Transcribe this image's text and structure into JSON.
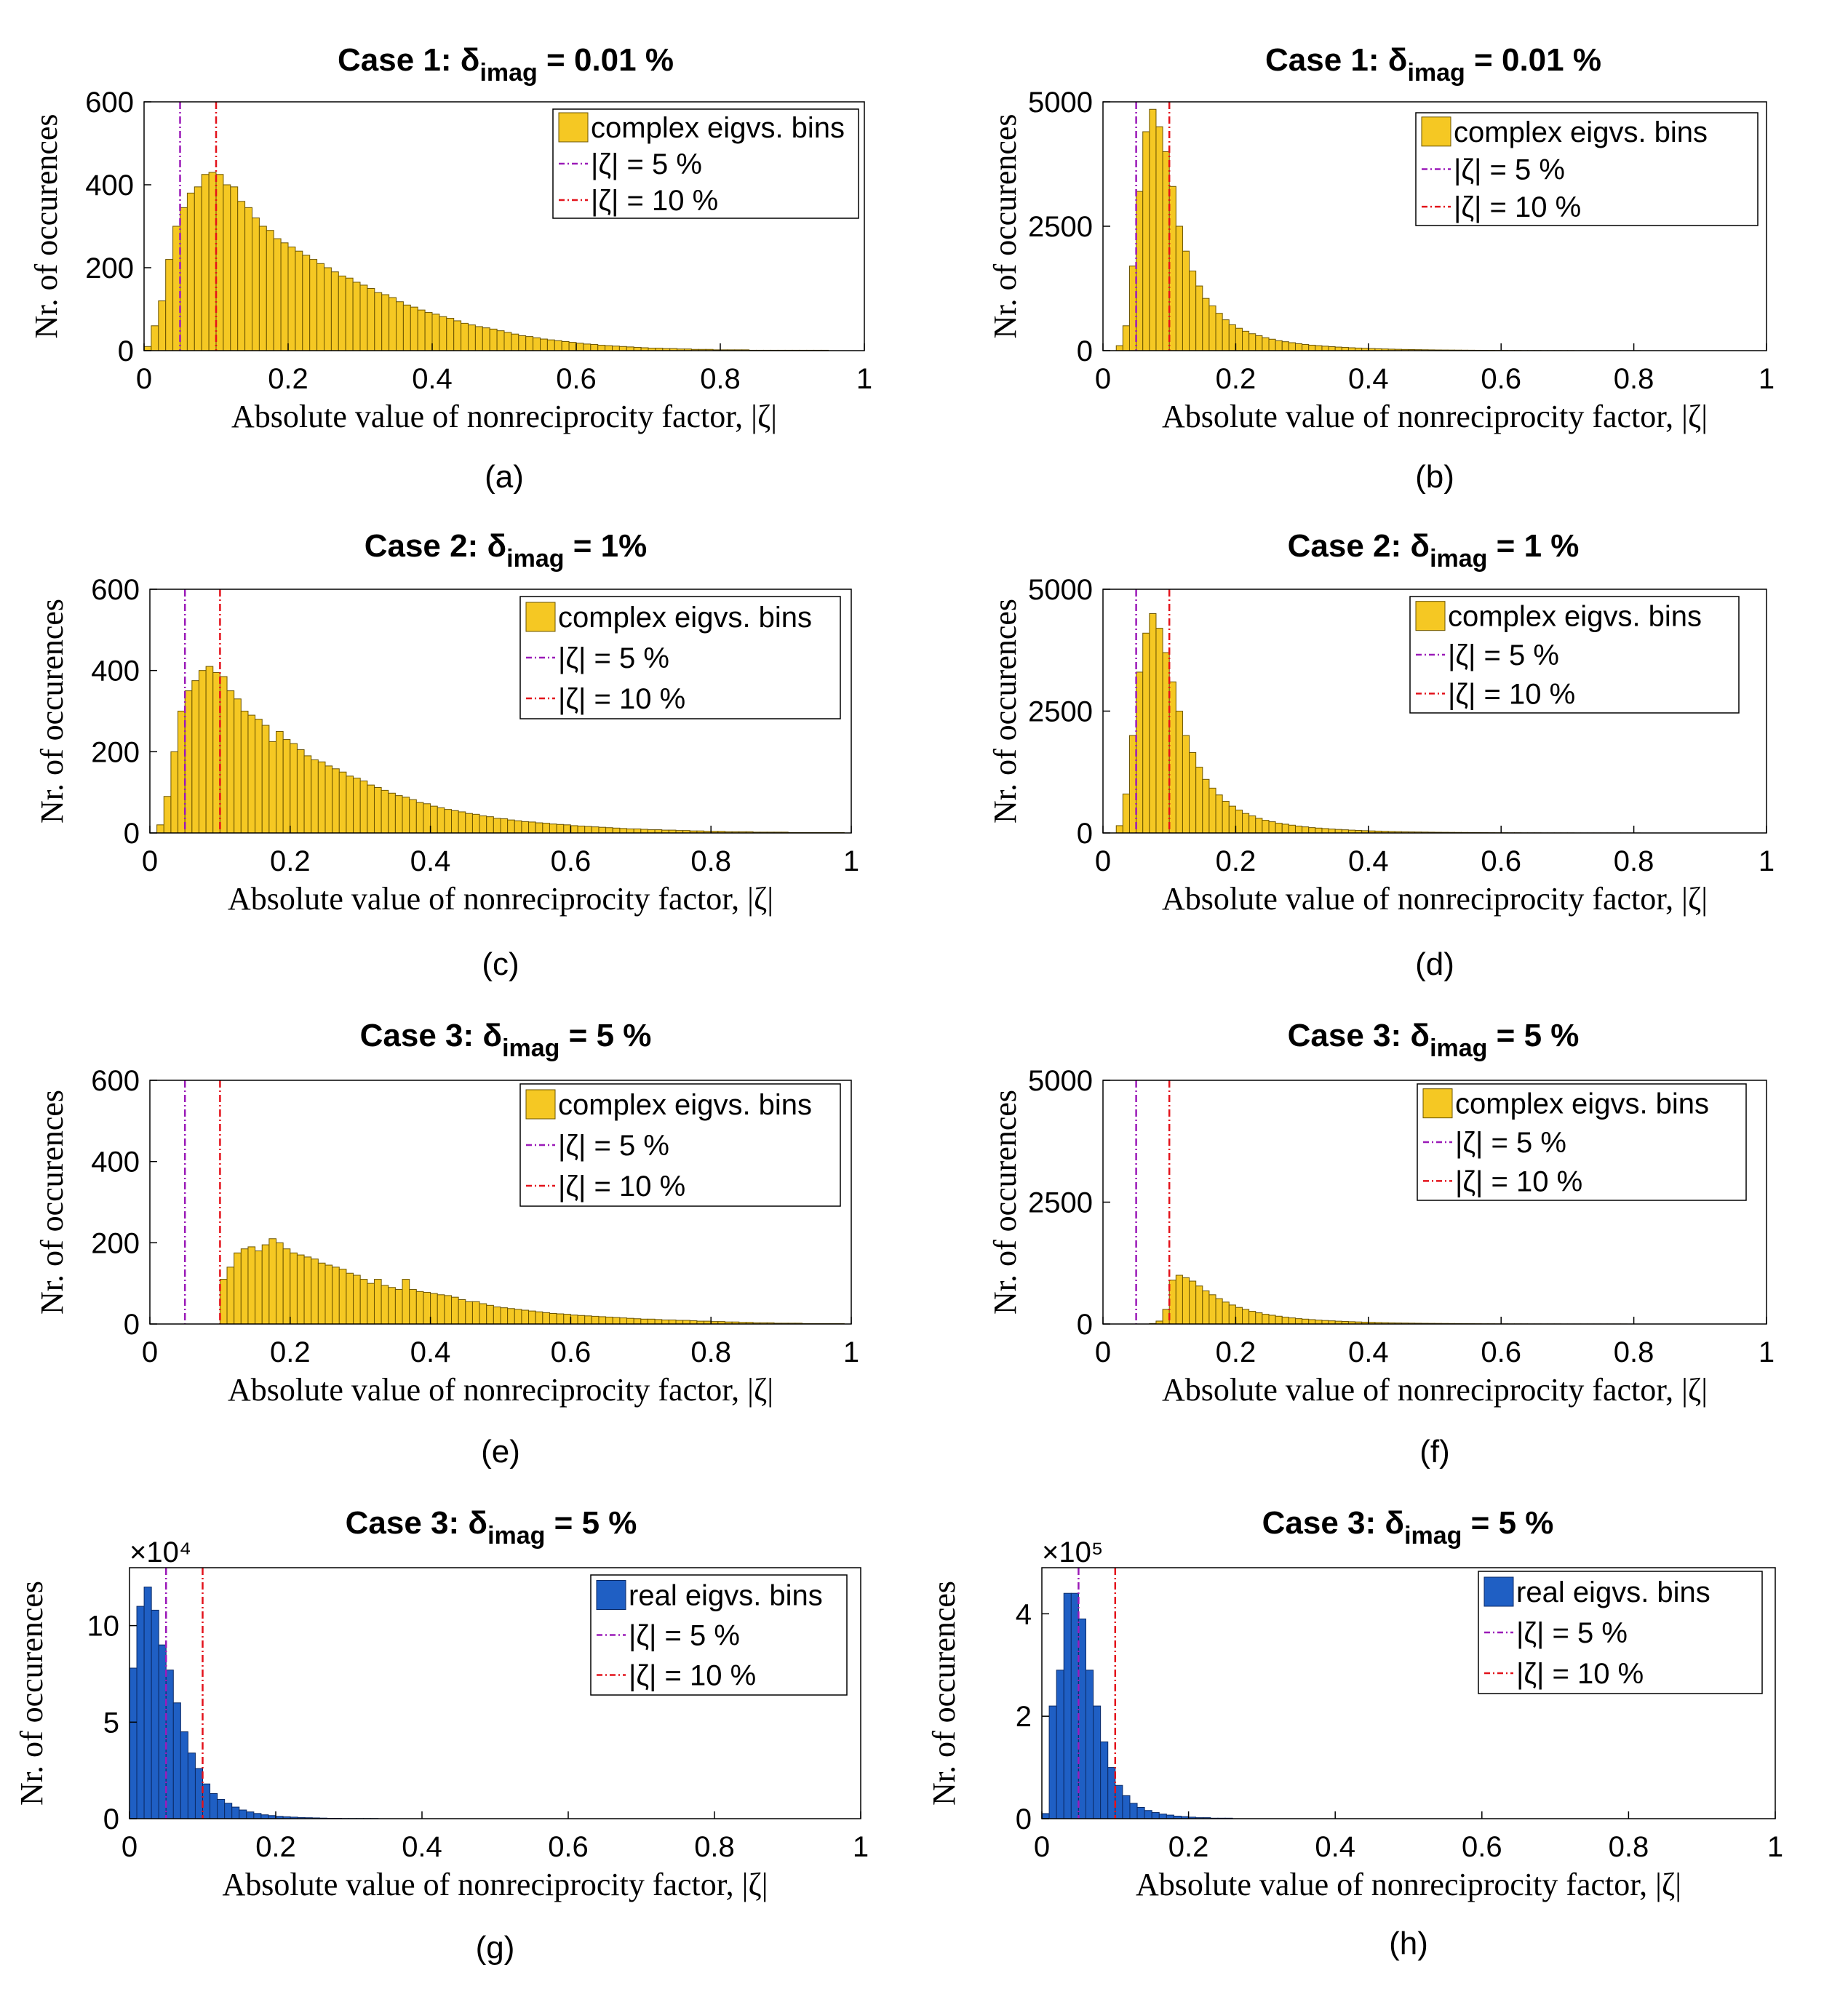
{
  "common": {
    "xlabel": "Absolute value of nonreciprocity factor, |ζ|",
    "ylabel": "Nr. of occurences",
    "x_ticks": [
      "0",
      "0.2",
      "0.4",
      "0.6",
      "0.8",
      "1"
    ],
    "legend_line5": "|ζ| = 5 %",
    "legend_line10": "|ζ| = 10 %",
    "line5_x": 0.05,
    "line10_x": 0.1,
    "line5_color": "#9b1ab8",
    "line10_color": "#e3121b",
    "complex_color": "#f5c823",
    "real_color": "#1f5fc4"
  },
  "panels": [
    {
      "id": "a",
      "label": "(a)",
      "title_main": "Case 1: δ",
      "title_sub": "imag",
      "title_end": " = 0.01 %",
      "legend_bins": "complex eigvs. bins",
      "y_ticks": [
        "0",
        "200",
        "400",
        "600"
      ],
      "multiplier": ""
    },
    {
      "id": "b",
      "label": "(b)",
      "title_main": "Case 1: δ",
      "title_sub": "imag",
      "title_end": " = 0.01 %",
      "legend_bins": "complex eigvs. bins",
      "y_ticks": [
        "0",
        "2500",
        "5000"
      ],
      "multiplier": ""
    },
    {
      "id": "c",
      "label": "(c)",
      "title_main": "Case 2: δ",
      "title_sub": "imag",
      "title_end": " = 1%",
      "legend_bins": "complex eigvs. bins",
      "y_ticks": [
        "0",
        "200",
        "400",
        "600"
      ],
      "multiplier": ""
    },
    {
      "id": "d",
      "label": "(d)",
      "title_main": "Case 2: δ",
      "title_sub": "imag",
      "title_end": " = 1 %",
      "legend_bins": "complex eigvs. bins",
      "y_ticks": [
        "0",
        "2500",
        "5000"
      ],
      "multiplier": ""
    },
    {
      "id": "e",
      "label": "(e)",
      "title_main": "Case 3: δ",
      "title_sub": "imag",
      "title_end": " = 5 %",
      "legend_bins": "complex eigvs. bins",
      "y_ticks": [
        "0",
        "200",
        "400",
        "600"
      ],
      "multiplier": ""
    },
    {
      "id": "f",
      "label": "(f)",
      "title_main": "Case 3: δ",
      "title_sub": "imag",
      "title_end": " = 5 %",
      "legend_bins": "complex eigvs. bins",
      "y_ticks": [
        "0",
        "2500",
        "5000"
      ],
      "multiplier": ""
    },
    {
      "id": "g",
      "label": "(g)",
      "title_main": "Case 3: δ",
      "title_sub": "imag",
      "title_end": " = 5 %",
      "legend_bins": "real eigvs. bins",
      "y_ticks": [
        "0",
        "5",
        "10"
      ],
      "multiplier": "×10⁴"
    },
    {
      "id": "h",
      "label": "(h)",
      "title_main": "Case 3: δ",
      "title_sub": "imag",
      "title_end": " = 5 %",
      "legend_bins": "real eigvs. bins",
      "y_ticks": [
        "0",
        "2",
        "4"
      ],
      "multiplier": "×10⁵"
    }
  ],
  "chart_data": [
    {
      "type": "bar",
      "panel": "a",
      "title": "Case 1: δimag = 0.01 %",
      "xlabel": "Absolute value of nonreciprocity factor, |ζ|",
      "ylabel": "Nr. of occurences",
      "xlim": [
        0,
        1
      ],
      "ylim": [
        0,
        600
      ],
      "y_ticks": [
        0,
        200,
        400,
        600
      ],
      "bin_start": 0.0,
      "bin_width": 0.01,
      "series": [
        {
          "name": "complex eigvs. bins",
          "values": [
            10,
            60,
            120,
            220,
            300,
            345,
            380,
            395,
            425,
            430,
            425,
            400,
            395,
            360,
            345,
            320,
            300,
            290,
            270,
            260,
            250,
            240,
            230,
            220,
            210,
            200,
            190,
            180,
            175,
            165,
            158,
            150,
            140,
            135,
            128,
            118,
            110,
            105,
            98,
            92,
            88,
            82,
            78,
            72,
            66,
            62,
            58,
            55,
            52,
            48,
            44,
            40,
            36,
            34,
            31,
            28,
            26,
            24,
            22,
            20,
            18,
            16,
            15,
            13,
            12,
            11,
            10,
            9,
            8,
            7,
            6,
            6,
            5,
            5,
            4,
            4,
            3,
            3,
            3,
            2,
            2,
            2,
            2,
            2,
            1,
            1,
            1,
            1,
            1,
            1,
            1,
            1,
            1,
            1,
            1,
            0,
            0,
            0,
            0,
            0
          ]
        }
      ]
    },
    {
      "type": "bar",
      "panel": "b",
      "title": "Case 1: δimag = 0.01 %",
      "xlabel": "Absolute value of nonreciprocity factor, |ζ|",
      "ylabel": "Nr. of occurences",
      "xlim": [
        0,
        1
      ],
      "ylim": [
        0,
        5000
      ],
      "y_ticks": [
        0,
        2500,
        5000
      ],
      "bin_start": 0.0,
      "bin_width": 0.01,
      "series": [
        {
          "name": "complex eigvs. bins",
          "values": [
            0,
            0,
            100,
            500,
            1700,
            3200,
            4400,
            4850,
            4500,
            4000,
            3300,
            2500,
            2000,
            1600,
            1300,
            1050,
            900,
            750,
            620,
            520,
            450,
            390,
            340,
            300,
            260,
            230,
            200,
            180,
            160,
            140,
            125,
            110,
            100,
            90,
            80,
            72,
            65,
            58,
            52,
            47,
            42,
            38,
            34,
            30,
            27,
            24,
            22,
            20,
            18,
            16,
            14,
            13,
            12,
            11,
            10,
            9,
            8,
            7,
            6,
            5,
            5,
            4,
            4,
            3,
            3,
            3,
            2,
            2,
            2,
            2,
            2,
            1,
            1,
            1,
            1,
            1,
            1,
            1,
            1,
            1,
            1,
            0,
            0,
            0,
            0,
            0,
            0,
            0,
            0,
            0,
            0,
            0,
            0,
            0,
            0,
            0,
            0,
            0,
            0,
            0
          ]
        }
      ]
    },
    {
      "type": "bar",
      "panel": "c",
      "title": "Case 2: δimag = 1%",
      "xlabel": "Absolute value of nonreciprocity factor, |ζ|",
      "ylabel": "Nr. of occurences",
      "xlim": [
        0,
        1
      ],
      "ylim": [
        0,
        600
      ],
      "y_ticks": [
        0,
        200,
        400,
        600
      ],
      "bin_start": 0.0,
      "bin_width": 0.01,
      "series": [
        {
          "name": "complex eigvs. bins",
          "values": [
            0,
            20,
            90,
            200,
            300,
            350,
            375,
            400,
            410,
            395,
            385,
            350,
            330,
            300,
            290,
            280,
            265,
            225,
            250,
            230,
            220,
            205,
            190,
            180,
            175,
            165,
            158,
            150,
            140,
            135,
            128,
            118,
            112,
            105,
            98,
            92,
            88,
            82,
            75,
            72,
            66,
            62,
            58,
            55,
            52,
            48,
            46,
            42,
            40,
            36,
            35,
            32,
            30,
            28,
            27,
            25,
            24,
            22,
            21,
            20,
            18,
            17,
            16,
            15,
            14,
            13,
            12,
            11,
            10,
            10,
            9,
            8,
            8,
            7,
            7,
            6,
            6,
            5,
            5,
            4,
            4,
            4,
            3,
            3,
            3,
            3,
            2,
            2,
            2,
            2,
            2,
            1,
            1,
            1,
            1,
            1,
            1,
            1,
            1,
            0
          ]
        }
      ]
    },
    {
      "type": "bar",
      "panel": "d",
      "title": "Case 2: δimag = 1 %",
      "xlabel": "Absolute value of nonreciprocity factor, |ζ|",
      "ylabel": "Nr. of occurences",
      "xlim": [
        0,
        1
      ],
      "ylim": [
        0,
        5000
      ],
      "y_ticks": [
        0,
        2500,
        5000
      ],
      "bin_start": 0.0,
      "bin_width": 0.01,
      "series": [
        {
          "name": "complex eigvs. bins",
          "values": [
            0,
            0,
            150,
            800,
            2000,
            3300,
            4100,
            4500,
            4200,
            3700,
            3100,
            2500,
            2000,
            1650,
            1350,
            1100,
            920,
            780,
            650,
            550,
            470,
            400,
            350,
            300,
            260,
            230,
            200,
            180,
            160,
            140,
            125,
            110,
            100,
            90,
            80,
            72,
            65,
            58,
            52,
            47,
            42,
            38,
            34,
            30,
            27,
            24,
            22,
            20,
            18,
            16,
            14,
            13,
            12,
            11,
            10,
            9,
            8,
            7,
            6,
            5,
            5,
            4,
            4,
            3,
            3,
            3,
            2,
            2,
            2,
            2,
            2,
            1,
            1,
            1,
            1,
            1,
            1,
            1,
            1,
            1,
            1,
            0,
            0,
            0,
            0,
            0,
            0,
            0,
            0,
            0,
            0,
            0,
            0,
            0,
            0,
            0,
            0,
            0,
            0,
            0
          ]
        }
      ]
    },
    {
      "type": "bar",
      "panel": "e",
      "title": "Case 3: δimag = 5 %",
      "xlabel": "Absolute value of nonreciprocity factor, |ζ|",
      "ylabel": "Nr. of occurences",
      "xlim": [
        0,
        1
      ],
      "ylim": [
        0,
        600
      ],
      "y_ticks": [
        0,
        200,
        400,
        600
      ],
      "bin_start": 0.0,
      "bin_width": 0.01,
      "series": [
        {
          "name": "complex eigvs. bins",
          "values": [
            0,
            0,
            0,
            0,
            0,
            0,
            0,
            0,
            0,
            0,
            110,
            140,
            175,
            185,
            190,
            180,
            195,
            210,
            200,
            185,
            175,
            170,
            165,
            160,
            150,
            145,
            140,
            135,
            125,
            120,
            110,
            100,
            110,
            95,
            90,
            85,
            110,
            85,
            80,
            78,
            75,
            72,
            70,
            66,
            60,
            55,
            55,
            50,
            46,
            42,
            40,
            38,
            36,
            34,
            32,
            30,
            28,
            26,
            25,
            24,
            22,
            21,
            20,
            19,
            18,
            17,
            16,
            15,
            14,
            13,
            12,
            12,
            11,
            10,
            10,
            9,
            9,
            8,
            7,
            7,
            6,
            6,
            5,
            5,
            4,
            4,
            3,
            3,
            3,
            2,
            2,
            2,
            2,
            1,
            1,
            1,
            1,
            1,
            1,
            0
          ]
        }
      ]
    },
    {
      "type": "bar",
      "panel": "f",
      "title": "Case 3: δimag = 5 %",
      "xlabel": "Absolute value of nonreciprocity factor, |ζ|",
      "ylabel": "Nr. of occurences",
      "xlim": [
        0,
        1
      ],
      "ylim": [
        0,
        5000
      ],
      "y_ticks": [
        0,
        2500,
        5000
      ],
      "bin_start": 0.0,
      "bin_width": 0.01,
      "series": [
        {
          "name": "complex eigvs. bins",
          "values": [
            0,
            0,
            0,
            0,
            0,
            0,
            0,
            10,
            60,
            300,
            900,
            1000,
            950,
            880,
            780,
            680,
            600,
            520,
            450,
            390,
            340,
            300,
            260,
            230,
            200,
            180,
            160,
            140,
            125,
            110,
            100,
            90,
            80,
            72,
            65,
            58,
            52,
            47,
            42,
            38,
            34,
            30,
            27,
            24,
            22,
            20,
            18,
            16,
            14,
            13,
            12,
            11,
            10,
            9,
            8,
            7,
            6,
            5,
            5,
            4,
            4,
            3,
            3,
            3,
            2,
            2,
            2,
            2,
            2,
            1,
            1,
            1,
            1,
            1,
            1,
            1,
            1,
            1,
            1,
            0,
            0,
            0,
            0,
            0,
            0,
            0,
            0,
            0,
            0,
            0,
            0,
            0,
            0,
            0,
            0,
            0,
            0,
            0,
            0,
            0
          ]
        }
      ]
    },
    {
      "type": "bar",
      "panel": "g",
      "title": "Case 3: δimag = 5 %",
      "xlabel": "Absolute value of nonreciprocity factor, |ζ|",
      "ylabel": "Nr. of occurences",
      "xlim": [
        0,
        1
      ],
      "ylim": [
        0,
        13
      ],
      "y_ticks": [
        0,
        5,
        10
      ],
      "multiplier": "x10^4",
      "bin_start": 0.0,
      "bin_width": 0.01,
      "series": [
        {
          "name": "real eigvs. bins",
          "values": [
            7.8,
            11.0,
            12.0,
            10.8,
            9.0,
            7.7,
            6.0,
            4.5,
            3.4,
            2.6,
            1.8,
            1.3,
            1.0,
            0.8,
            0.6,
            0.45,
            0.35,
            0.27,
            0.2,
            0.16,
            0.12,
            0.1,
            0.08,
            0.06,
            0.05,
            0.04,
            0.03,
            0.02,
            0.02,
            0.01,
            0.01,
            0.01,
            0.01,
            0.01,
            0,
            0,
            0,
            0,
            0,
            0,
            0,
            0,
            0,
            0,
            0,
            0,
            0,
            0,
            0,
            0,
            0,
            0,
            0,
            0,
            0,
            0,
            0,
            0,
            0,
            0,
            0,
            0,
            0,
            0,
            0,
            0,
            0,
            0,
            0,
            0,
            0,
            0,
            0,
            0,
            0,
            0,
            0,
            0,
            0,
            0,
            0,
            0,
            0,
            0,
            0,
            0,
            0,
            0,
            0,
            0,
            0,
            0,
            0,
            0,
            0,
            0,
            0,
            0,
            0,
            0
          ]
        }
      ]
    },
    {
      "type": "bar",
      "panel": "h",
      "title": "Case 3: δimag = 5 %",
      "xlabel": "Absolute value of nonreciprocity factor, |ζ|",
      "ylabel": "Nr. of occurences",
      "xlim": [
        0,
        1
      ],
      "ylim": [
        0,
        4.9
      ],
      "y_ticks": [
        0,
        2,
        4
      ],
      "multiplier": "x10^5",
      "bin_start": 0.0,
      "bin_width": 0.01,
      "series": [
        {
          "name": "real eigvs. bins",
          "values": [
            0.1,
            2.2,
            2.9,
            4.4,
            4.4,
            3.9,
            2.9,
            2.2,
            1.5,
            1.0,
            0.65,
            0.45,
            0.3,
            0.22,
            0.16,
            0.12,
            0.09,
            0.07,
            0.05,
            0.04,
            0.03,
            0.02,
            0.02,
            0.01,
            0.01,
            0.01,
            0,
            0,
            0,
            0,
            0,
            0,
            0,
            0,
            0,
            0,
            0,
            0,
            0,
            0,
            0,
            0,
            0,
            0,
            0,
            0,
            0,
            0,
            0,
            0,
            0,
            0,
            0,
            0,
            0,
            0,
            0,
            0,
            0,
            0,
            0,
            0,
            0,
            0,
            0,
            0,
            0,
            0,
            0,
            0,
            0,
            0,
            0,
            0,
            0,
            0,
            0,
            0,
            0,
            0,
            0,
            0,
            0,
            0,
            0,
            0,
            0,
            0,
            0,
            0,
            0,
            0,
            0,
            0,
            0,
            0,
            0,
            0,
            0,
            0
          ]
        }
      ]
    }
  ]
}
